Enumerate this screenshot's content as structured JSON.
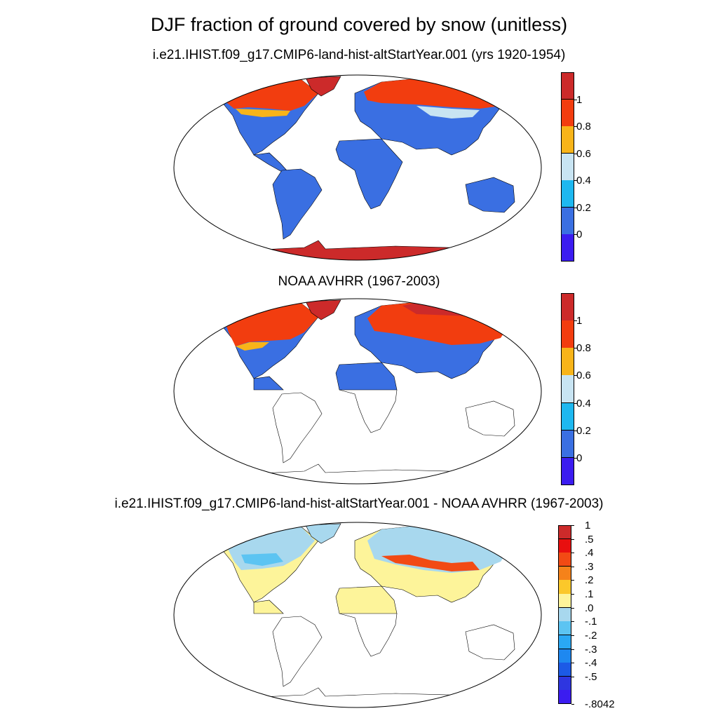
{
  "title": "DJF fraction of ground covered by snow (unitless)",
  "panels": [
    {
      "title": "i.e21.IHIST.f09_g17.CMIP6-land-hist-altStartYear.001 (yrs 1920-1954)",
      "colorbar": {
        "colors": [
          "#cc2a2a",
          "#f23d0f",
          "#f8b419",
          "#c8e4f2",
          "#1eb8f0",
          "#3a6fe2",
          "#3b1cf0"
        ],
        "labels": [
          "1",
          "0.8",
          "0.6",
          "0.4",
          "0.2",
          "0"
        ]
      }
    },
    {
      "title": "NOAA AVHRR (1967-2003)",
      "colorbar": {
        "colors": [
          "#cc2a2a",
          "#f23d0f",
          "#f8b419",
          "#c8e4f2",
          "#1eb8f0",
          "#3a6fe2",
          "#3b1cf0"
        ],
        "labels": [
          "1",
          "0.8",
          "0.6",
          "0.4",
          "0.2",
          "0"
        ]
      }
    },
    {
      "title": "i.e21.IHIST.f09_g17.CMIP6-land-hist-altStartYear.001 - NOAA AVHRR (1967-2003)",
      "colorbar": {
        "colors": [
          "#cc2a2a",
          "#e80f0f",
          "#f24a14",
          "#f5821a",
          "#fbc82a",
          "#fdf49a",
          "#a8d8ee",
          "#5cc4f2",
          "#2aa8f4",
          "#1e88f0",
          "#1c5ae6",
          "#2e36e0",
          "#3b1cf0"
        ],
        "labels": [
          "1",
          ".5",
          ".4",
          ".3",
          ".2",
          ".1",
          ".0",
          "-.1",
          "-.2",
          "-.3",
          "-.4",
          "-.5",
          "-.8042"
        ]
      }
    }
  ],
  "colors": {
    "ocean": "#ffffff",
    "outline": "#000000"
  }
}
